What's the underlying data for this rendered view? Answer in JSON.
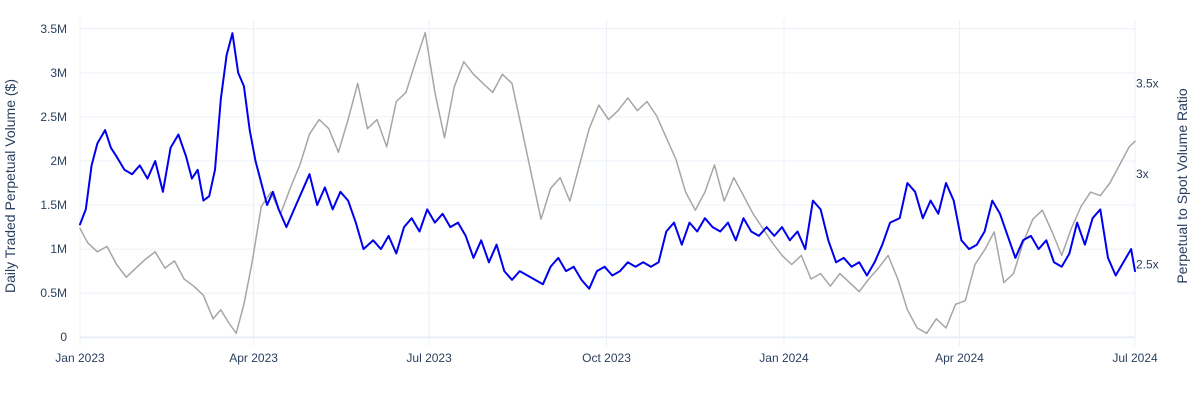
{
  "chart_data": {
    "type": "line",
    "title": "",
    "x_axis": {
      "type": "date",
      "range": [
        "2023-01-01",
        "2024-07-01"
      ],
      "ticks": [
        {
          "value": "2023-01-01",
          "label": "Jan 2023"
        },
        {
          "value": "2023-04-01",
          "label": "Apr 2023"
        },
        {
          "value": "2023-07-01",
          "label": "Jul 2023"
        },
        {
          "value": "2023-10-01",
          "label": "Oct 2023"
        },
        {
          "value": "2024-01-01",
          "label": "Jan 2024"
        },
        {
          "value": "2024-04-01",
          "label": "Apr 2024"
        },
        {
          "value": "2024-07-01",
          "label": "Jul 2024"
        }
      ],
      "grid": true
    },
    "y_axis_left": {
      "label": "Daily Traded Perpetual Volume ($)",
      "range": [
        -100000,
        3600000
      ],
      "ticks": [
        {
          "value": 0,
          "label": "0"
        },
        {
          "value": 500000,
          "label": "0.5M"
        },
        {
          "value": 1000000,
          "label": "1M"
        },
        {
          "value": 1500000,
          "label": "1.5M"
        },
        {
          "value": 2000000,
          "label": "2M"
        },
        {
          "value": 2500000,
          "label": "2.5M"
        },
        {
          "value": 3000000,
          "label": "3M"
        },
        {
          "value": 3500000,
          "label": "3.5M"
        }
      ],
      "grid": true
    },
    "y_axis_right": {
      "label": "Perpetual to Spot Volume Ratio",
      "range": [
        2.05,
        3.85
      ],
      "ticks": [
        {
          "value": 2.5,
          "label": "2.5x"
        },
        {
          "value": 3.0,
          "label": "3x"
        },
        {
          "value": 3.5,
          "label": "3.5x"
        }
      ],
      "grid": false
    },
    "series": [
      {
        "name": "",
        "axis": "left",
        "color": "#0000ee",
        "line_width": 2,
        "points": [
          [
            "2023-01-01",
            1280000
          ],
          [
            "2023-01-04",
            1450000
          ],
          [
            "2023-01-07",
            1950000
          ],
          [
            "2023-01-10",
            2200000
          ],
          [
            "2023-01-14",
            2350000
          ],
          [
            "2023-01-17",
            2150000
          ],
          [
            "2023-01-20",
            2050000
          ],
          [
            "2023-01-24",
            1900000
          ],
          [
            "2023-01-28",
            1850000
          ],
          [
            "2023-02-01",
            1950000
          ],
          [
            "2023-02-05",
            1800000
          ],
          [
            "2023-02-09",
            2000000
          ],
          [
            "2023-02-13",
            1650000
          ],
          [
            "2023-02-17",
            2150000
          ],
          [
            "2023-02-21",
            2300000
          ],
          [
            "2023-02-25",
            2050000
          ],
          [
            "2023-02-28",
            1800000
          ],
          [
            "2023-03-03",
            1900000
          ],
          [
            "2023-03-06",
            1550000
          ],
          [
            "2023-03-09",
            1600000
          ],
          [
            "2023-03-12",
            1900000
          ],
          [
            "2023-03-15",
            2700000
          ],
          [
            "2023-03-18",
            3200000
          ],
          [
            "2023-03-21",
            3450000
          ],
          [
            "2023-03-24",
            3000000
          ],
          [
            "2023-03-27",
            2850000
          ],
          [
            "2023-03-30",
            2350000
          ],
          [
            "2023-04-02",
            2000000
          ],
          [
            "2023-04-05",
            1750000
          ],
          [
            "2023-04-08",
            1500000
          ],
          [
            "2023-04-11",
            1650000
          ],
          [
            "2023-04-14",
            1450000
          ],
          [
            "2023-04-18",
            1250000
          ],
          [
            "2023-04-22",
            1450000
          ],
          [
            "2023-04-26",
            1650000
          ],
          [
            "2023-04-30",
            1850000
          ],
          [
            "2023-05-04",
            1500000
          ],
          [
            "2023-05-08",
            1700000
          ],
          [
            "2023-05-12",
            1450000
          ],
          [
            "2023-05-16",
            1650000
          ],
          [
            "2023-05-20",
            1550000
          ],
          [
            "2023-05-24",
            1300000
          ],
          [
            "2023-05-28",
            1000000
          ],
          [
            "2023-06-02",
            1100000
          ],
          [
            "2023-06-06",
            1000000
          ],
          [
            "2023-06-10",
            1150000
          ],
          [
            "2023-06-14",
            950000
          ],
          [
            "2023-06-18",
            1250000
          ],
          [
            "2023-06-22",
            1350000
          ],
          [
            "2023-06-26",
            1200000
          ],
          [
            "2023-06-30",
            1450000
          ],
          [
            "2023-07-04",
            1300000
          ],
          [
            "2023-07-08",
            1400000
          ],
          [
            "2023-07-12",
            1250000
          ],
          [
            "2023-07-16",
            1300000
          ],
          [
            "2023-07-20",
            1150000
          ],
          [
            "2023-07-24",
            900000
          ],
          [
            "2023-07-28",
            1100000
          ],
          [
            "2023-08-01",
            850000
          ],
          [
            "2023-08-05",
            1050000
          ],
          [
            "2023-08-09",
            750000
          ],
          [
            "2023-08-13",
            650000
          ],
          [
            "2023-08-17",
            750000
          ],
          [
            "2023-08-21",
            700000
          ],
          [
            "2023-08-25",
            650000
          ],
          [
            "2023-08-29",
            600000
          ],
          [
            "2023-09-02",
            800000
          ],
          [
            "2023-09-06",
            900000
          ],
          [
            "2023-09-10",
            750000
          ],
          [
            "2023-09-14",
            800000
          ],
          [
            "2023-09-18",
            650000
          ],
          [
            "2023-09-22",
            550000
          ],
          [
            "2023-09-26",
            750000
          ],
          [
            "2023-09-30",
            800000
          ],
          [
            "2023-10-04",
            700000
          ],
          [
            "2023-10-08",
            750000
          ],
          [
            "2023-10-12",
            850000
          ],
          [
            "2023-10-16",
            800000
          ],
          [
            "2023-10-20",
            850000
          ],
          [
            "2023-10-24",
            800000
          ],
          [
            "2023-10-28",
            850000
          ],
          [
            "2023-11-01",
            1200000
          ],
          [
            "2023-11-05",
            1300000
          ],
          [
            "2023-11-09",
            1050000
          ],
          [
            "2023-11-13",
            1300000
          ],
          [
            "2023-11-17",
            1200000
          ],
          [
            "2023-11-21",
            1350000
          ],
          [
            "2023-11-25",
            1250000
          ],
          [
            "2023-11-29",
            1200000
          ],
          [
            "2023-12-03",
            1300000
          ],
          [
            "2023-12-07",
            1100000
          ],
          [
            "2023-12-11",
            1350000
          ],
          [
            "2023-12-15",
            1200000
          ],
          [
            "2023-12-19",
            1150000
          ],
          [
            "2023-12-23",
            1250000
          ],
          [
            "2023-12-27",
            1150000
          ],
          [
            "2023-12-31",
            1250000
          ],
          [
            "2024-01-04",
            1100000
          ],
          [
            "2024-01-08",
            1200000
          ],
          [
            "2024-01-12",
            1000000
          ],
          [
            "2024-01-16",
            1550000
          ],
          [
            "2024-01-20",
            1450000
          ],
          [
            "2024-01-24",
            1100000
          ],
          [
            "2024-01-28",
            850000
          ],
          [
            "2024-02-01",
            900000
          ],
          [
            "2024-02-05",
            800000
          ],
          [
            "2024-02-09",
            850000
          ],
          [
            "2024-02-13",
            700000
          ],
          [
            "2024-02-17",
            850000
          ],
          [
            "2024-02-21",
            1050000
          ],
          [
            "2024-02-25",
            1300000
          ],
          [
            "2024-03-01",
            1350000
          ],
          [
            "2024-03-05",
            1750000
          ],
          [
            "2024-03-09",
            1650000
          ],
          [
            "2024-03-13",
            1350000
          ],
          [
            "2024-03-17",
            1550000
          ],
          [
            "2024-03-21",
            1400000
          ],
          [
            "2024-03-25",
            1750000
          ],
          [
            "2024-03-29",
            1550000
          ],
          [
            "2024-04-02",
            1100000
          ],
          [
            "2024-04-06",
            1000000
          ],
          [
            "2024-04-10",
            1050000
          ],
          [
            "2024-04-14",
            1200000
          ],
          [
            "2024-04-18",
            1550000
          ],
          [
            "2024-04-22",
            1400000
          ],
          [
            "2024-04-26",
            1150000
          ],
          [
            "2024-04-30",
            900000
          ],
          [
            "2024-05-04",
            1100000
          ],
          [
            "2024-05-08",
            1150000
          ],
          [
            "2024-05-12",
            1000000
          ],
          [
            "2024-05-16",
            1100000
          ],
          [
            "2024-05-20",
            850000
          ],
          [
            "2024-05-24",
            800000
          ],
          [
            "2024-05-28",
            950000
          ],
          [
            "2024-06-01",
            1300000
          ],
          [
            "2024-06-05",
            1050000
          ],
          [
            "2024-06-09",
            1350000
          ],
          [
            "2024-06-13",
            1450000
          ],
          [
            "2024-06-17",
            900000
          ],
          [
            "2024-06-21",
            700000
          ],
          [
            "2024-06-25",
            850000
          ],
          [
            "2024-06-29",
            1000000
          ],
          [
            "2024-07-01",
            750000
          ]
        ]
      },
      {
        "name": "",
        "axis": "right",
        "color": "#a6a6a6",
        "line_width": 1.5,
        "points": [
          [
            "2023-01-01",
            2.7
          ],
          [
            "2023-01-05",
            2.62
          ],
          [
            "2023-01-10",
            2.57
          ],
          [
            "2023-01-15",
            2.6
          ],
          [
            "2023-01-20",
            2.5
          ],
          [
            "2023-01-25",
            2.43
          ],
          [
            "2023-01-30",
            2.48
          ],
          [
            "2023-02-04",
            2.53
          ],
          [
            "2023-02-09",
            2.57
          ],
          [
            "2023-02-14",
            2.48
          ],
          [
            "2023-02-19",
            2.52
          ],
          [
            "2023-02-24",
            2.42
          ],
          [
            "2023-03-01",
            2.38
          ],
          [
            "2023-03-06",
            2.33
          ],
          [
            "2023-03-11",
            2.2
          ],
          [
            "2023-03-15",
            2.25
          ],
          [
            "2023-03-19",
            2.18
          ],
          [
            "2023-03-23",
            2.12
          ],
          [
            "2023-03-27",
            2.28
          ],
          [
            "2023-03-31",
            2.5
          ],
          [
            "2023-04-05",
            2.82
          ],
          [
            "2023-04-10",
            2.9
          ],
          [
            "2023-04-15",
            2.78
          ],
          [
            "2023-04-20",
            2.92
          ],
          [
            "2023-04-25",
            3.05
          ],
          [
            "2023-04-30",
            3.22
          ],
          [
            "2023-05-05",
            3.3
          ],
          [
            "2023-05-10",
            3.25
          ],
          [
            "2023-05-15",
            3.12
          ],
          [
            "2023-05-20",
            3.3
          ],
          [
            "2023-05-25",
            3.5
          ],
          [
            "2023-05-30",
            3.25
          ],
          [
            "2023-06-04",
            3.3
          ],
          [
            "2023-06-09",
            3.15
          ],
          [
            "2023-06-14",
            3.4
          ],
          [
            "2023-06-19",
            3.45
          ],
          [
            "2023-06-24",
            3.62
          ],
          [
            "2023-06-29",
            3.78
          ],
          [
            "2023-07-04",
            3.45
          ],
          [
            "2023-07-09",
            3.2
          ],
          [
            "2023-07-14",
            3.48
          ],
          [
            "2023-07-19",
            3.62
          ],
          [
            "2023-07-24",
            3.55
          ],
          [
            "2023-07-29",
            3.5
          ],
          [
            "2023-08-03",
            3.45
          ],
          [
            "2023-08-08",
            3.55
          ],
          [
            "2023-08-13",
            3.5
          ],
          [
            "2023-08-18",
            3.25
          ],
          [
            "2023-08-23",
            3.0
          ],
          [
            "2023-08-28",
            2.75
          ],
          [
            "2023-09-02",
            2.92
          ],
          [
            "2023-09-07",
            2.98
          ],
          [
            "2023-09-12",
            2.85
          ],
          [
            "2023-09-17",
            3.05
          ],
          [
            "2023-09-22",
            3.25
          ],
          [
            "2023-09-27",
            3.38
          ],
          [
            "2023-10-02",
            3.3
          ],
          [
            "2023-10-07",
            3.35
          ],
          [
            "2023-10-12",
            3.42
          ],
          [
            "2023-10-17",
            3.35
          ],
          [
            "2023-10-22",
            3.4
          ],
          [
            "2023-10-27",
            3.32
          ],
          [
            "2023-11-01",
            3.2
          ],
          [
            "2023-11-06",
            3.08
          ],
          [
            "2023-11-11",
            2.9
          ],
          [
            "2023-11-16",
            2.8
          ],
          [
            "2023-11-21",
            2.9
          ],
          [
            "2023-11-26",
            3.05
          ],
          [
            "2023-12-01",
            2.85
          ],
          [
            "2023-12-06",
            2.98
          ],
          [
            "2023-12-11",
            2.88
          ],
          [
            "2023-12-16",
            2.78
          ],
          [
            "2023-12-21",
            2.7
          ],
          [
            "2023-12-26",
            2.62
          ],
          [
            "2023-12-31",
            2.55
          ],
          [
            "2024-01-05",
            2.5
          ],
          [
            "2024-01-10",
            2.55
          ],
          [
            "2024-01-15",
            2.42
          ],
          [
            "2024-01-20",
            2.45
          ],
          [
            "2024-01-25",
            2.38
          ],
          [
            "2024-01-30",
            2.45
          ],
          [
            "2024-02-04",
            2.4
          ],
          [
            "2024-02-09",
            2.35
          ],
          [
            "2024-02-14",
            2.42
          ],
          [
            "2024-02-19",
            2.48
          ],
          [
            "2024-02-24",
            2.55
          ],
          [
            "2024-02-29",
            2.42
          ],
          [
            "2024-03-05",
            2.25
          ],
          [
            "2024-03-10",
            2.15
          ],
          [
            "2024-03-15",
            2.12
          ],
          [
            "2024-03-20",
            2.2
          ],
          [
            "2024-03-25",
            2.15
          ],
          [
            "2024-03-30",
            2.28
          ],
          [
            "2024-04-04",
            2.3
          ],
          [
            "2024-04-09",
            2.5
          ],
          [
            "2024-04-14",
            2.58
          ],
          [
            "2024-04-19",
            2.68
          ],
          [
            "2024-04-24",
            2.4
          ],
          [
            "2024-04-29",
            2.45
          ],
          [
            "2024-05-04",
            2.62
          ],
          [
            "2024-05-09",
            2.75
          ],
          [
            "2024-05-14",
            2.8
          ],
          [
            "2024-05-19",
            2.68
          ],
          [
            "2024-05-24",
            2.55
          ],
          [
            "2024-05-29",
            2.7
          ],
          [
            "2024-06-03",
            2.82
          ],
          [
            "2024-06-08",
            2.9
          ],
          [
            "2024-06-13",
            2.88
          ],
          [
            "2024-06-18",
            2.95
          ],
          [
            "2024-06-23",
            3.05
          ],
          [
            "2024-06-28",
            3.15
          ],
          [
            "2024-07-01",
            3.18
          ]
        ]
      }
    ]
  }
}
